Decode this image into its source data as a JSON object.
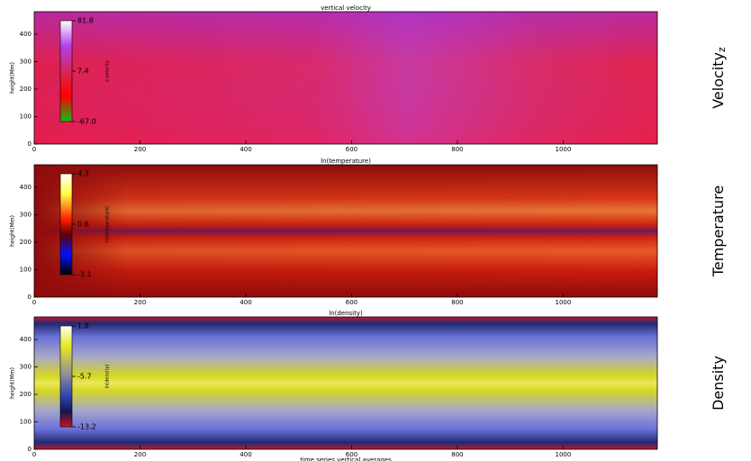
{
  "chart_data": [
    {
      "type": "heatmap",
      "title": "vertical velocity",
      "ylabel": "height(Mm)",
      "colorbar_label": "z-velocity",
      "right_label": "Velocity",
      "right_label_sub": "z",
      "xlim": [
        0,
        1178
      ],
      "xticks": [
        0,
        200,
        400,
        600,
        800,
        1000
      ],
      "ylim": [
        0,
        482
      ],
      "yticks": [
        0,
        100,
        200,
        300,
        400
      ],
      "colorbar_lim": [
        -67,
        81.8
      ],
      "colorbar_ticks": [
        81.8,
        7.4,
        {
          "value": -67,
          "label": "-67.0"
        }
      ]
    },
    {
      "type": "heatmap",
      "title": "ln(temperature)",
      "ylabel": "height(Mm)",
      "colorbar_label": "ln(temperature)",
      "right_label": "Temperature",
      "xlim": [
        0,
        1178
      ],
      "xticks": [
        0,
        200,
        400,
        600,
        800,
        1000
      ],
      "ylim": [
        0,
        482
      ],
      "yticks": [
        0,
        100,
        200,
        300,
        400
      ],
      "colorbar_lim": [
        -3.1,
        4.3
      ],
      "colorbar_ticks": [
        4.3,
        0.6,
        -3.1
      ]
    },
    {
      "type": "heatmap",
      "title": "ln(density)",
      "ylabel": "height(Mm)",
      "colorbar_label": "ln(density)",
      "right_label": "Density",
      "xlabel": "time series vertical averages",
      "xlim": [
        0,
        1178
      ],
      "xticks": [
        0,
        200,
        400,
        600,
        800,
        1000
      ],
      "ylim": [
        0,
        482
      ],
      "yticks": [
        0,
        100,
        200,
        300,
        400
      ],
      "colorbar_lim": [
        -13.2,
        1.8
      ],
      "colorbar_ticks": [
        1.8,
        -5.7,
        -13.2
      ]
    }
  ]
}
